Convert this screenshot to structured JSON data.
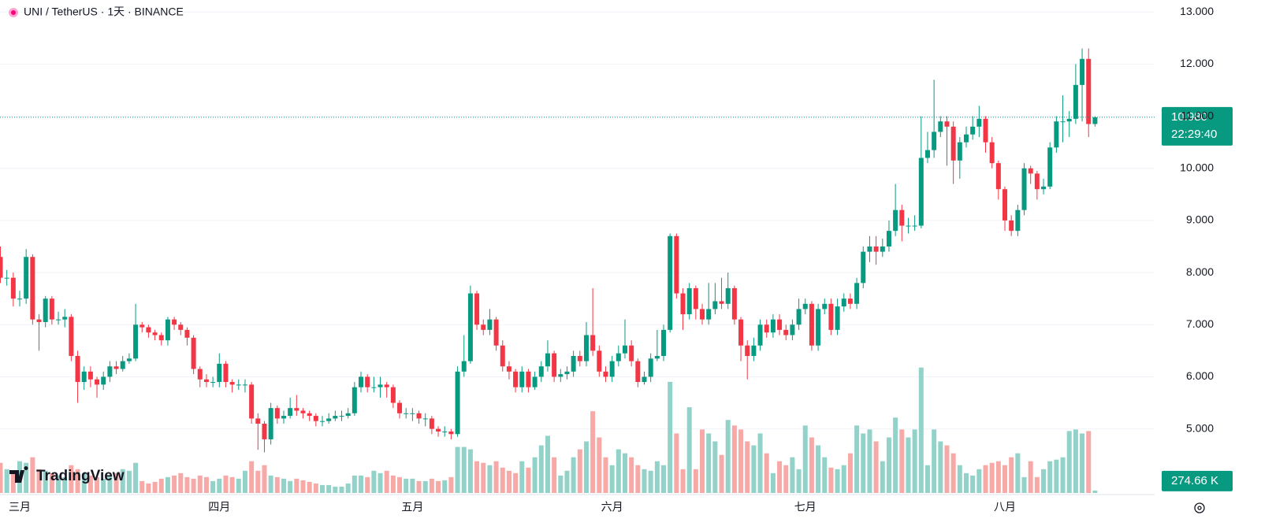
{
  "chart_data": {
    "type": "candlestick",
    "title": "UNI / TetherUS · 1天 · BINANCE",
    "logo": "TradingView",
    "categories": [
      null,
      null,
      null,
      "三月",
      null,
      null,
      null,
      null,
      null,
      null,
      null,
      null,
      null,
      null,
      null,
      null,
      null,
      null,
      null,
      null,
      null,
      null,
      null,
      null,
      null,
      null,
      null,
      null,
      null,
      null,
      null,
      null,
      null,
      null,
      "四月",
      null,
      null,
      null,
      null,
      null,
      null,
      null,
      null,
      null,
      null,
      null,
      null,
      null,
      null,
      null,
      null,
      null,
      null,
      null,
      null,
      null,
      null,
      null,
      null,
      null,
      null,
      null,
      null,
      null,
      "五月",
      null,
      null,
      null,
      null,
      null,
      null,
      null,
      null,
      null,
      null,
      null,
      null,
      null,
      null,
      null,
      null,
      null,
      null,
      null,
      null,
      null,
      null,
      null,
      null,
      null,
      null,
      null,
      null,
      null,
      null,
      "六月",
      null,
      null,
      null,
      null,
      null,
      null,
      null,
      null,
      null,
      null,
      null,
      null,
      null,
      null,
      null,
      null,
      null,
      null,
      null,
      null,
      null,
      null,
      null,
      null,
      null,
      null,
      null,
      null,
      null,
      "七月",
      null,
      null,
      null,
      null,
      null,
      null,
      null,
      null,
      null,
      null,
      null,
      null,
      null,
      null,
      null,
      null,
      null,
      null,
      null,
      null,
      null,
      null,
      null,
      null,
      null,
      null,
      null,
      null,
      null,
      null,
      "八月",
      null,
      null,
      null,
      null,
      null,
      null,
      null,
      null,
      null,
      null,
      null,
      null,
      null,
      null
    ],
    "open": [
      8.3,
      7.9,
      7.9,
      7.5,
      7.5,
      8.3,
      7.1,
      7.05,
      7.5,
      7.1,
      7.1,
      7.15,
      6.4,
      5.9,
      6.1,
      5.95,
      5.85,
      6.0,
      6.2,
      6.15,
      6.3,
      6.35,
      7.0,
      6.95,
      6.85,
      6.8,
      6.7,
      7.1,
      7.0,
      6.9,
      6.75,
      6.15,
      5.95,
      5.9,
      5.9,
      6.25,
      5.9,
      5.85,
      5.85,
      5.85,
      5.2,
      5.1,
      4.8,
      5.4,
      5.2,
      5.25,
      5.4,
      5.35,
      5.3,
      5.25,
      5.15,
      5.15,
      5.2,
      5.25,
      5.25,
      5.3,
      5.8,
      6.0,
      5.8,
      5.8,
      5.85,
      5.8,
      5.5,
      5.3,
      5.3,
      5.3,
      5.2,
      5.2,
      5.0,
      4.95,
      4.95,
      4.9,
      6.1,
      6.3,
      7.6,
      7.0,
      6.9,
      7.1,
      6.6,
      6.2,
      6.1,
      5.8,
      6.1,
      5.8,
      6.0,
      6.2,
      6.45,
      6.0,
      6.05,
      6.1,
      6.4,
      6.3,
      6.8,
      6.5,
      6.1,
      6.0,
      6.3,
      6.45,
      6.6,
      6.3,
      5.9,
      6.0,
      6.35,
      6.4,
      6.9,
      8.7,
      7.6,
      7.2,
      7.7,
      7.3,
      7.1,
      7.3,
      7.45,
      7.4,
      7.7,
      7.1,
      6.6,
      6.4,
      6.6,
      7.0,
      6.85,
      7.1,
      6.9,
      6.8,
      7.0,
      7.3,
      7.4,
      6.6,
      7.3,
      7.4,
      6.9,
      7.35,
      7.5,
      7.4,
      7.8,
      8.4,
      8.5,
      8.4,
      8.5,
      8.8,
      9.2,
      8.9,
      8.9,
      8.9,
      10.2,
      10.35,
      10.7,
      10.9,
      10.8,
      10.15,
      10.5,
      10.65,
      10.8,
      10.95,
      10.5,
      10.1,
      9.6,
      9.0,
      8.8,
      9.2,
      10.0,
      9.9,
      9.6,
      9.65,
      10.4,
      10.9,
      10.9,
      10.95,
      11.6,
      12.1,
      10.85
    ],
    "high": [
      8.5,
      8.05,
      8.0,
      7.65,
      8.45,
      8.35,
      7.2,
      7.55,
      7.55,
      7.25,
      7.3,
      7.2,
      6.5,
      6.2,
      6.2,
      6.0,
      6.1,
      6.3,
      6.3,
      6.4,
      6.45,
      7.4,
      7.05,
      7.0,
      6.9,
      6.85,
      7.15,
      7.15,
      7.05,
      6.95,
      6.8,
      6.2,
      6.05,
      6.0,
      6.45,
      6.3,
      5.95,
      5.95,
      5.95,
      5.9,
      5.3,
      5.15,
      5.5,
      5.45,
      5.35,
      5.6,
      5.65,
      5.4,
      5.35,
      5.3,
      5.25,
      5.3,
      5.35,
      5.35,
      5.4,
      5.9,
      6.1,
      6.05,
      6.0,
      6.0,
      5.9,
      5.85,
      5.55,
      5.4,
      5.4,
      5.35,
      5.3,
      5.25,
      5.05,
      5.05,
      5.0,
      6.2,
      6.8,
      7.75,
      7.65,
      7.1,
      7.3,
      7.15,
      6.7,
      6.3,
      6.15,
      6.2,
      6.15,
      6.1,
      6.3,
      6.7,
      6.5,
      6.15,
      6.2,
      6.5,
      6.5,
      7.05,
      7.7,
      6.6,
      6.2,
      6.4,
      6.6,
      7.1,
      6.7,
      6.35,
      6.1,
      6.45,
      6.9,
      7.0,
      8.75,
      8.75,
      7.7,
      7.8,
      7.75,
      7.4,
      7.8,
      7.8,
      7.9,
      8.0,
      7.75,
      7.15,
      6.7,
      6.75,
      7.1,
      7.1,
      7.2,
      7.2,
      7.0,
      7.1,
      7.5,
      7.5,
      7.45,
      7.4,
      7.5,
      7.5,
      7.5,
      7.6,
      7.6,
      7.9,
      8.5,
      8.7,
      8.7,
      8.65,
      9.0,
      9.7,
      9.3,
      9.05,
      9.1,
      11.0,
      10.7,
      11.7,
      11.0,
      11.0,
      10.9,
      10.6,
      10.8,
      11.0,
      11.2,
      11.0,
      10.6,
      10.15,
      9.65,
      9.1,
      9.3,
      10.1,
      10.05,
      9.95,
      9.8,
      10.5,
      11.0,
      11.4,
      11.1,
      12.0,
      12.3,
      12.3,
      11.0
    ],
    "low": [
      7.8,
      7.75,
      7.35,
      7.35,
      7.4,
      7.0,
      6.5,
      6.95,
      7.0,
      7.0,
      6.95,
      6.3,
      5.5,
      5.75,
      5.8,
      5.6,
      5.75,
      5.9,
      6.05,
      6.1,
      6.25,
      6.3,
      6.85,
      6.75,
      6.7,
      6.6,
      6.6,
      6.9,
      6.8,
      6.6,
      6.05,
      5.8,
      5.8,
      5.8,
      5.8,
      5.8,
      5.7,
      5.75,
      5.7,
      5.1,
      4.6,
      4.55,
      4.7,
      5.1,
      5.1,
      5.2,
      5.25,
      5.2,
      5.15,
      5.05,
      5.05,
      5.1,
      5.15,
      5.15,
      5.2,
      5.25,
      5.7,
      5.7,
      5.7,
      5.6,
      5.6,
      5.4,
      5.2,
      5.2,
      5.15,
      5.1,
      5.05,
      4.9,
      4.85,
      4.85,
      4.8,
      4.85,
      6.0,
      6.25,
      6.9,
      6.8,
      6.8,
      6.5,
      6.1,
      5.95,
      5.7,
      5.7,
      5.7,
      5.75,
      5.9,
      6.1,
      5.9,
      5.9,
      5.95,
      6.0,
      6.2,
      6.2,
      6.4,
      6.0,
      5.9,
      5.9,
      6.2,
      6.35,
      6.2,
      5.8,
      5.85,
      5.9,
      6.3,
      6.3,
      6.85,
      7.5,
      6.9,
      7.1,
      7.1,
      7.0,
      7.0,
      7.2,
      7.3,
      7.3,
      7.0,
      6.3,
      5.95,
      6.3,
      6.5,
      6.75,
      6.75,
      6.8,
      6.7,
      6.7,
      6.9,
      7.2,
      6.5,
      6.5,
      7.2,
      6.8,
      6.8,
      7.25,
      7.3,
      7.3,
      7.7,
      8.2,
      8.15,
      8.3,
      8.4,
      8.7,
      8.6,
      8.75,
      8.8,
      8.85,
      10.1,
      10.2,
      10.6,
      10.05,
      9.7,
      9.8,
      10.4,
      10.55,
      10.6,
      10.3,
      10.0,
      9.4,
      8.8,
      8.7,
      8.7,
      9.1,
      9.7,
      9.4,
      9.5,
      9.6,
      10.3,
      10.5,
      10.6,
      10.85,
      10.9,
      10.6,
      10.8
    ],
    "close": [
      7.9,
      7.9,
      7.5,
      7.5,
      8.3,
      7.1,
      7.05,
      7.5,
      7.1,
      7.1,
      7.15,
      6.4,
      5.9,
      6.1,
      5.95,
      5.85,
      6.0,
      6.2,
      6.15,
      6.3,
      6.35,
      7.0,
      6.95,
      6.85,
      6.8,
      6.7,
      7.1,
      7.0,
      6.9,
      6.75,
      6.15,
      5.95,
      5.9,
      5.9,
      6.25,
      5.9,
      5.85,
      5.85,
      5.85,
      5.2,
      5.1,
      4.8,
      5.4,
      5.2,
      5.25,
      5.4,
      5.35,
      5.3,
      5.25,
      5.15,
      5.15,
      5.2,
      5.25,
      5.25,
      5.3,
      5.8,
      6.0,
      5.8,
      5.8,
      5.85,
      5.8,
      5.5,
      5.3,
      5.3,
      5.3,
      5.2,
      5.2,
      5.0,
      4.95,
      4.95,
      4.9,
      6.1,
      6.3,
      7.6,
      7.0,
      6.9,
      7.1,
      6.6,
      6.2,
      6.1,
      5.8,
      6.1,
      5.8,
      6.0,
      6.2,
      6.45,
      6.0,
      6.05,
      6.1,
      6.4,
      6.3,
      6.8,
      6.5,
      6.1,
      6.0,
      6.3,
      6.45,
      6.6,
      6.3,
      5.9,
      6.0,
      6.35,
      6.4,
      6.9,
      8.7,
      7.6,
      7.2,
      7.7,
      7.3,
      7.1,
      7.3,
      7.45,
      7.4,
      7.7,
      7.1,
      6.6,
      6.4,
      6.6,
      7.0,
      6.85,
      7.1,
      6.9,
      6.8,
      7.0,
      7.3,
      7.4,
      6.6,
      7.3,
      7.4,
      6.9,
      7.35,
      7.5,
      7.4,
      7.8,
      8.4,
      8.5,
      8.4,
      8.5,
      8.8,
      9.2,
      8.9,
      8.9,
      8.9,
      10.2,
      10.35,
      10.7,
      10.9,
      10.8,
      10.15,
      10.5,
      10.65,
      10.8,
      10.95,
      10.5,
      10.1,
      9.6,
      9.0,
      8.8,
      9.2,
      10.0,
      9.9,
      9.6,
      9.65,
      10.4,
      10.9,
      10.9,
      10.95,
      11.6,
      12.1,
      10.85,
      10.98
    ],
    "volume": [
      3420000,
      2700000,
      2250000,
      3600000,
      3420000,
      4050000,
      2700000,
      2520000,
      2250000,
      1980000,
      1800000,
      3150000,
      2700000,
      2250000,
      1980000,
      1800000,
      1620000,
      1980000,
      2250000,
      2700000,
      2520000,
      3420000,
      1350000,
      1080000,
      1260000,
      1620000,
      1800000,
      1980000,
      2250000,
      1800000,
      1620000,
      1980000,
      1800000,
      1350000,
      1620000,
      1980000,
      1800000,
      1620000,
      2520000,
      3600000,
      2520000,
      3150000,
      1980000,
      1800000,
      1620000,
      1350000,
      1620000,
      1440000,
      1260000,
      1080000,
      900000,
      900000,
      720000,
      720000,
      1080000,
      1980000,
      1980000,
      1800000,
      2520000,
      2250000,
      2520000,
      1980000,
      1800000,
      1620000,
      1620000,
      1350000,
      1350000,
      1620000,
      1350000,
      1440000,
      1800000,
      5220000,
      5220000,
      4950000,
      3600000,
      3420000,
      3150000,
      3600000,
      2880000,
      2520000,
      2250000,
      3600000,
      2880000,
      4050000,
      5400000,
      6480000,
      4050000,
      1980000,
      2520000,
      4050000,
      4950000,
      5850000,
      9270000,
      6300000,
      4050000,
      3150000,
      4950000,
      4500000,
      4050000,
      3150000,
      2700000,
      2520000,
      3600000,
      3150000,
      12600000,
      6750000,
      2700000,
      9720000,
      2700000,
      7200000,
      6750000,
      5850000,
      4320000,
      8280000,
      7650000,
      7200000,
      5850000,
      5400000,
      6750000,
      4500000,
      2250000,
      3600000,
      3150000,
      4050000,
      2700000,
      7650000,
      6300000,
      5400000,
      4050000,
      2880000,
      2700000,
      3150000,
      4500000,
      7650000,
      6750000,
      7200000,
      5850000,
      3600000,
      6300000,
      8550000,
      7200000,
      6300000,
      7200000,
      14220000,
      3150000,
      7200000,
      5850000,
      5400000,
      4500000,
      3150000,
      2250000,
      1980000,
      2700000,
      3150000,
      3420000,
      3600000,
      3150000,
      4050000,
      4500000,
      1800000,
      3600000,
      1800000,
      2700000,
      3600000,
      3780000,
      4050000,
      7020000,
      7200000,
      6750000,
      7020000,
      274660
    ],
    "ylim": [
      3.74,
      13.23
    ],
    "yticks": [
      {
        "value": 13,
        "label": "13.000"
      },
      {
        "value": 12,
        "label": "12.000"
      },
      {
        "value": 11,
        "label": "11.000"
      },
      {
        "value": 10,
        "label": "10.000"
      },
      {
        "value": 9,
        "label": "9.000"
      },
      {
        "value": 8,
        "label": "8.000"
      },
      {
        "value": 7,
        "label": "7.000"
      },
      {
        "value": 6,
        "label": "6.000"
      },
      {
        "value": 5,
        "label": "5.000"
      }
    ],
    "volume_ylim": [
      0,
      25000000
    ],
    "price_label": {
      "value": 10.98,
      "label": "10.980"
    },
    "countdown": "22:29:40",
    "volume_label": {
      "value": 274660,
      "label": "274.66 K"
    },
    "up_color": "#089981",
    "down_color": "#f23645",
    "volume_up_color": "#92d2c9",
    "volume_down_color": "#f7a9a7",
    "grid": true
  }
}
